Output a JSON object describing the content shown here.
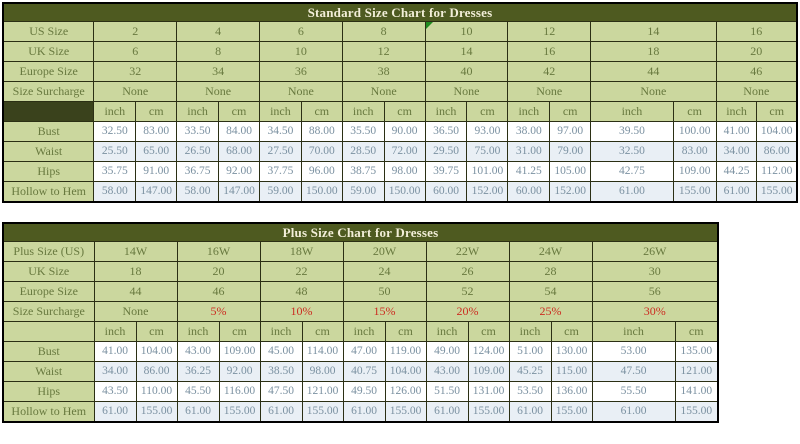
{
  "colors": {
    "header_bg": "#4e5a20",
    "header_text": "#f2eed8",
    "label_bg": "#cbd79e",
    "label_text": "#68793f",
    "unit_dark_bg": "#3a421c",
    "data_text": "#7b91a1",
    "alt_row_bg": "#e9eff5",
    "surcharge_red": "#cc2d22",
    "note_green": "#1f8a1f",
    "border": "#2b2f14"
  },
  "standard_chart": {
    "title": "Standard Size Chart for Dresses",
    "unit_labels": [
      "inch",
      "cm"
    ],
    "info_rows": [
      {
        "label": "US Size",
        "values": [
          "2",
          "4",
          "6",
          "8",
          "10",
          "12",
          "14",
          "16"
        ],
        "note_index": 4
      },
      {
        "label": "UK Size",
        "values": [
          "6",
          "8",
          "10",
          "12",
          "14",
          "16",
          "18",
          "20"
        ]
      },
      {
        "label": "Europe Size",
        "values": [
          "32",
          "34",
          "36",
          "38",
          "40",
          "42",
          "44",
          "46"
        ]
      },
      {
        "label": "Size Surcharge",
        "values": [
          "None",
          "None",
          "None",
          "None",
          "None",
          "None",
          "None",
          "None"
        ]
      }
    ],
    "measure_rows": [
      {
        "label": "Bust",
        "values": [
          "32.50",
          "83.00",
          "33.50",
          "84.00",
          "34.50",
          "88.00",
          "35.50",
          "90.00",
          "36.50",
          "93.00",
          "38.00",
          "97.00",
          "39.50",
          "100.00",
          "41.00",
          "104.00"
        ]
      },
      {
        "label": "Waist",
        "values": [
          "25.50",
          "65.00",
          "26.50",
          "68.00",
          "27.50",
          "70.00",
          "28.50",
          "72.00",
          "29.50",
          "75.00",
          "31.00",
          "79.00",
          "32.50",
          "83.00",
          "34.00",
          "86.00"
        ]
      },
      {
        "label": "Hips",
        "values": [
          "35.75",
          "91.00",
          "36.75",
          "92.00",
          "37.75",
          "96.00",
          "38.75",
          "98.00",
          "39.75",
          "101.00",
          "41.25",
          "105.00",
          "42.75",
          "109.00",
          "44.25",
          "112.00"
        ]
      },
      {
        "label": "Hollow to Hem",
        "values": [
          "58.00",
          "147.00",
          "58.00",
          "147.00",
          "59.00",
          "150.00",
          "59.00",
          "150.00",
          "60.00",
          "152.00",
          "60.00",
          "152.00",
          "61.00",
          "155.00",
          "61.00",
          "155.00"
        ]
      }
    ]
  },
  "plus_chart": {
    "title": "Plus Size Chart for Dresses",
    "unit_labels": [
      "inch",
      "cm"
    ],
    "info_rows": [
      {
        "label": "Plus Size (US)",
        "values": [
          "14W",
          "16W",
          "18W",
          "20W",
          "22W",
          "24W",
          "26W"
        ]
      },
      {
        "label": "UK Size",
        "values": [
          "18",
          "20",
          "22",
          "24",
          "26",
          "28",
          "30"
        ]
      },
      {
        "label": "Europe Size",
        "values": [
          "44",
          "46",
          "48",
          "50",
          "52",
          "54",
          "56"
        ]
      },
      {
        "label": "Size Surcharge",
        "values": [
          "None",
          "5%",
          "10%",
          "15%",
          "20%",
          "25%",
          "30%"
        ]
      }
    ],
    "measure_rows": [
      {
        "label": "Bust",
        "values": [
          "41.00",
          "104.00",
          "43.00",
          "109.00",
          "45.00",
          "114.00",
          "47.00",
          "119.00",
          "49.00",
          "124.00",
          "51.00",
          "130.00",
          "53.00",
          "135.00"
        ]
      },
      {
        "label": "Waist",
        "values": [
          "34.00",
          "86.00",
          "36.25",
          "92.00",
          "38.50",
          "98.00",
          "40.75",
          "104.00",
          "43.00",
          "109.00",
          "45.25",
          "115.00",
          "47.50",
          "121.00"
        ]
      },
      {
        "label": "Hips",
        "values": [
          "43.50",
          "110.00",
          "45.50",
          "116.00",
          "47.50",
          "121.00",
          "49.50",
          "126.00",
          "51.50",
          "131.00",
          "53.50",
          "136.00",
          "55.50",
          "141.00"
        ]
      },
      {
        "label": "Hollow to Hem",
        "values": [
          "61.00",
          "155.00",
          "61.00",
          "155.00",
          "61.00",
          "155.00",
          "61.00",
          "155.00",
          "61.00",
          "155.00",
          "61.00",
          "155.00",
          "61.00",
          "155.00"
        ]
      }
    ]
  }
}
